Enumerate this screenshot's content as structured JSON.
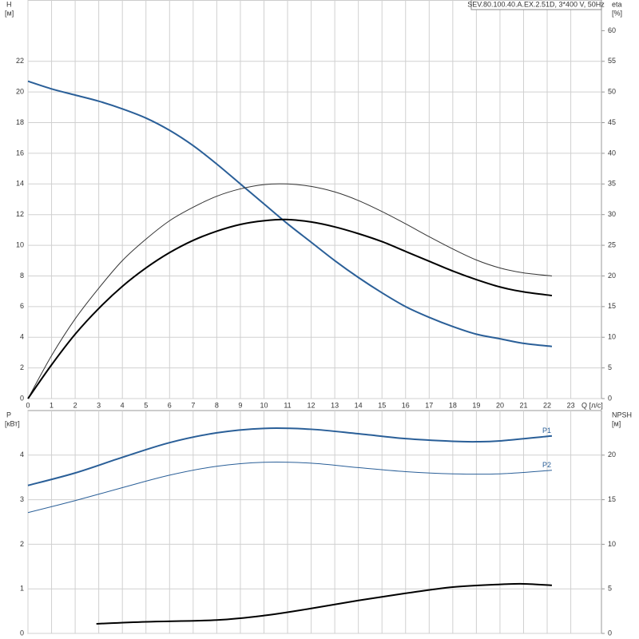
{
  "chart_data": [
    {
      "type": "line",
      "title": "SEV.80.100.40.A.EX.2.51D, 3*400 V, 50Hz",
      "xlabel": "Q [л/с]",
      "ylabel": "H",
      "yunit": "[м]",
      "y2label": "eta",
      "y2unit": "[%]",
      "xlim": [
        0,
        24.3
      ],
      "xticks": [
        0,
        1,
        2,
        3,
        4,
        5,
        6,
        7,
        8,
        9,
        10,
        11,
        12,
        13,
        14,
        15,
        16,
        17,
        18,
        19,
        20,
        21,
        22,
        23
      ],
      "ylim": [
        0,
        26
      ],
      "yticks": [
        0,
        2,
        4,
        6,
        8,
        10,
        12,
        14,
        16,
        18,
        20,
        22
      ],
      "y2lim": [
        0,
        65
      ],
      "y2ticks": [
        0,
        5,
        10,
        15,
        20,
        25,
        30,
        35,
        40,
        45,
        50,
        55,
        60
      ],
      "grid": true,
      "series": [
        {
          "color": "#2a5f98",
          "line_width": 2,
          "x": [
            0,
            1,
            2,
            3,
            4,
            5,
            6,
            7,
            8,
            9,
            10,
            11,
            12,
            13,
            14,
            15,
            16,
            17,
            18,
            19,
            20,
            21,
            22.2
          ],
          "values": [
            20.7,
            20.2,
            19.8,
            19.4,
            18.9,
            18.3,
            17.5,
            16.5,
            15.3,
            14.0,
            12.7,
            11.4,
            10.2,
            9.0,
            7.9,
            6.9,
            6.0,
            5.3,
            4.7,
            4.2,
            3.9,
            3.6,
            3.4
          ]
        },
        {
          "color": "#333333",
          "line_width": 1,
          "axis": "y2",
          "x": [
            0,
            1,
            2,
            3,
            4,
            5,
            6,
            7,
            8,
            9,
            10,
            11,
            12,
            13,
            14,
            15,
            16,
            17,
            18,
            19,
            20,
            21,
            22.2
          ],
          "values": [
            0,
            7,
            13,
            18,
            22.5,
            26,
            29,
            31.2,
            33,
            34.2,
            34.9,
            35,
            34.6,
            33.7,
            32.3,
            30.5,
            28.5,
            26.4,
            24.4,
            22.6,
            21.3,
            20.5,
            20
          ]
        },
        {
          "color": "#000000",
          "line_width": 2,
          "axis": "y2",
          "x": [
            0,
            1,
            2,
            3,
            4,
            5,
            6,
            7,
            8,
            9,
            10,
            11,
            12,
            13,
            14,
            15,
            16,
            17,
            18,
            19,
            20,
            21,
            22.2
          ],
          "values": [
            0,
            5.5,
            10.5,
            14.7,
            18.3,
            21.3,
            23.8,
            25.8,
            27.3,
            28.4,
            29,
            29.2,
            28.8,
            28.0,
            26.9,
            25.6,
            24.0,
            22.4,
            20.8,
            19.4,
            18.2,
            17.4,
            16.8
          ]
        }
      ]
    },
    {
      "type": "line",
      "ylabel": "P",
      "yunit": "[кВт]",
      "y2label": "NPSH",
      "y2unit": "[м]",
      "xlim": [
        0,
        24.3
      ],
      "xticks": [
        0,
        1,
        2,
        3,
        4,
        5,
        6,
        7,
        8,
        9,
        10,
        11,
        12,
        13,
        14,
        15,
        16,
        17,
        18,
        19,
        20,
        21,
        22,
        23
      ],
      "ylim": [
        0,
        5
      ],
      "yticks": [
        0,
        1,
        2,
        3,
        4
      ],
      "y2lim": [
        0,
        25
      ],
      "y2ticks": [
        0,
        5,
        10,
        15,
        20
      ],
      "grid": true,
      "series": [
        {
          "name": "P1",
          "color": "#2a5f98",
          "line_width": 2,
          "x": [
            0,
            2,
            4,
            6,
            8,
            10,
            12,
            14,
            16,
            18,
            19,
            20,
            22.2
          ],
          "values": [
            3.32,
            3.6,
            3.95,
            4.28,
            4.5,
            4.6,
            4.58,
            4.48,
            4.37,
            4.31,
            4.3,
            4.32,
            4.43
          ]
        },
        {
          "name": "P2",
          "color": "#2a5f98",
          "line_width": 1,
          "x": [
            0,
            2,
            4,
            6,
            8,
            10,
            12,
            14,
            16,
            18,
            20,
            22.2
          ],
          "values": [
            2.71,
            2.98,
            3.27,
            3.55,
            3.75,
            3.84,
            3.82,
            3.72,
            3.63,
            3.58,
            3.58,
            3.66
          ]
        },
        {
          "color": "#000000",
          "line_width": 2,
          "axis": "y2",
          "x": [
            2.9,
            5,
            8,
            10,
            12,
            14,
            16,
            18,
            20,
            21,
            22.2
          ],
          "values": [
            1.08,
            1.3,
            1.5,
            2.0,
            2.8,
            3.7,
            4.5,
            5.2,
            5.5,
            5.56,
            5.4
          ]
        }
      ]
    }
  ]
}
